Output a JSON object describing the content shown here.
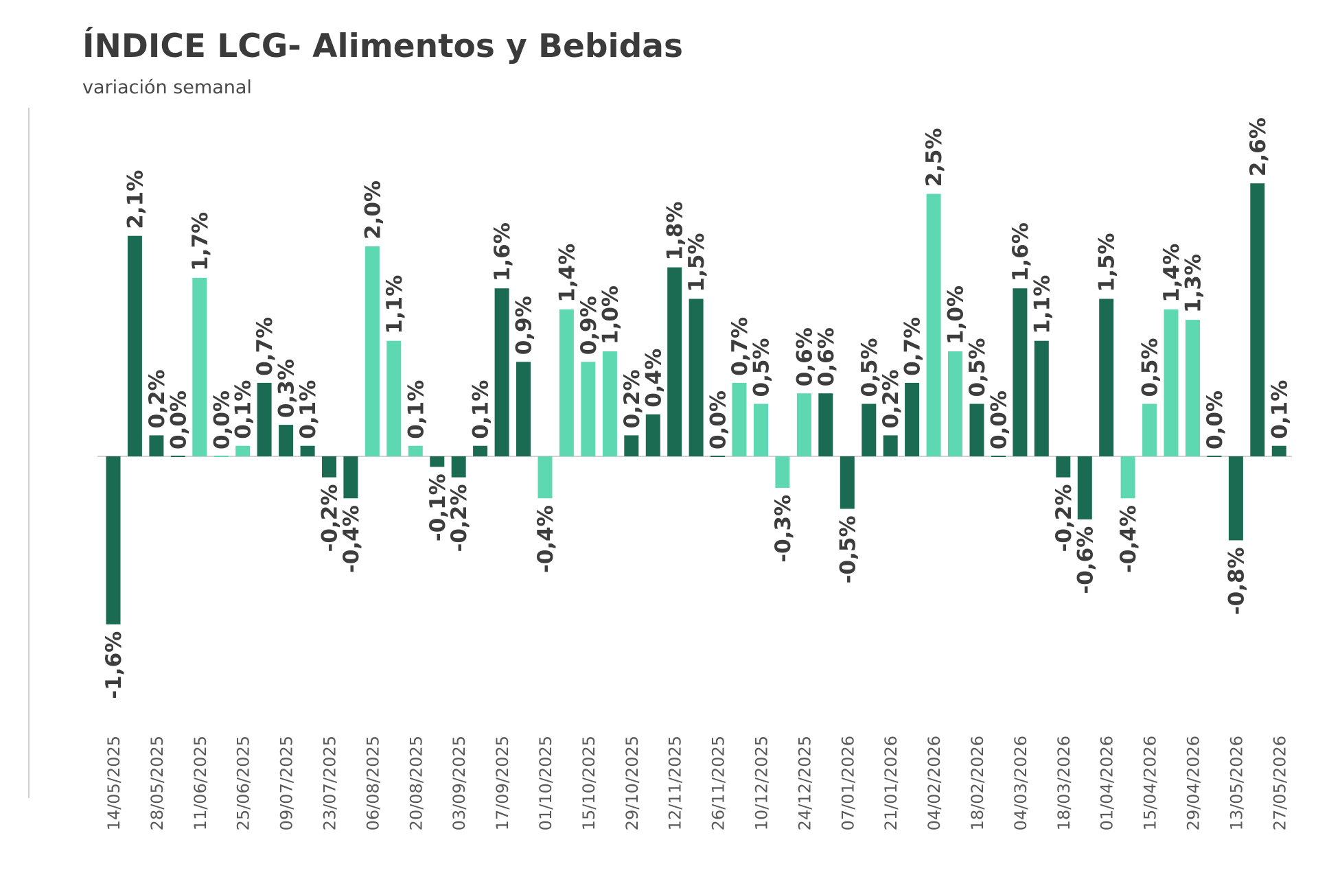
{
  "header": {
    "title": "ÍNDICE LCG- Alimentos y Bebidas",
    "subtitle": "variación semanal"
  },
  "colors": {
    "dark": "#1a6b52",
    "light": "#5dd8b1",
    "axis": "#d0d0d0",
    "text": "#3d3d3d"
  },
  "chart_data": {
    "type": "bar",
    "title": "ÍNDICE LCG- Alimentos y Bebidas",
    "subtitle": "variación semanal",
    "xlabel": "",
    "ylabel": "",
    "ylim": [
      -2.2,
      3.2
    ],
    "grid": false,
    "legend": "none",
    "tick_labels": [
      "14/05/2025",
      "28/05/2025",
      "11/06/2025",
      "25/06/2025",
      "09/07/2025",
      "23/07/2025",
      "06/08/2025",
      "20/08/2025",
      "03/09/2025",
      "17/09/2025",
      "01/10/2025",
      "15/10/2025",
      "29/10/2025",
      "12/11/2025",
      "26/11/2025",
      "10/12/2025",
      "24/12/2025",
      "07/01/2026",
      "21/01/2026",
      "04/02/2026",
      "18/02/2026",
      "04/03/2026",
      "18/03/2026",
      "01/04/2026",
      "15/04/2026",
      "29/04/2026",
      "13/05/2026",
      "27/05/2026"
    ],
    "values": [
      -1.6,
      2.1,
      0.2,
      0.0,
      1.7,
      0.0,
      0.1,
      0.7,
      0.3,
      0.1,
      -0.2,
      -0.4,
      2.0,
      1.1,
      0.1,
      -0.1,
      -0.2,
      0.1,
      1.6,
      0.9,
      -0.4,
      1.4,
      0.9,
      1.0,
      0.2,
      0.4,
      1.8,
      1.5,
      0.0,
      0.7,
      0.5,
      -0.3,
      0.6,
      0.6,
      -0.5,
      0.5,
      0.2,
      0.7,
      2.5,
      1.0,
      0.5,
      0.0,
      1.6,
      1.1,
      -0.2,
      -0.6,
      1.5,
      -0.4,
      0.5,
      1.4,
      1.3,
      0.0,
      -0.8,
      2.6,
      0.1
    ],
    "labels": [
      "-1,6%",
      "2,1%",
      "0,2%",
      "0,0%",
      "1,7%",
      "0,0%",
      "0,1%",
      "0,7%",
      "0,3%",
      "0,1%",
      "-0,2%",
      "-0,4%",
      "2,0%",
      "1,1%",
      "0,1%",
      "-0,1%",
      "-0,2%",
      "0,1%",
      "1,6%",
      "0,9%",
      "-0,4%",
      "1,4%",
      "0,9%",
      "1,0%",
      "0,2%",
      "0,4%",
      "1,8%",
      "1,5%",
      "0,0%",
      "0,7%",
      "0,5%",
      "-0,3%",
      "0,6%",
      "0,6%",
      "-0,5%",
      "0,5%",
      "0,2%",
      "0,7%",
      "2,5%",
      "1,0%",
      "0,5%",
      "0,0%",
      "1,6%",
      "1,1%",
      "-0,2%",
      "-0,6%",
      "1,5%",
      "-0,4%",
      "0,5%",
      "1,4%",
      "1,3%",
      "0,0%",
      "-0,8%",
      "2,6%",
      "0,1%"
    ],
    "shade": [
      "dark",
      "dark",
      "dark",
      "dark",
      "light",
      "light",
      "light",
      "dark",
      "dark",
      "dark",
      "dark",
      "dark",
      "light",
      "light",
      "light",
      "dark",
      "dark",
      "dark",
      "dark",
      "dark",
      "light",
      "light",
      "light",
      "light",
      "dark",
      "dark",
      "dark",
      "dark",
      "dark",
      "light",
      "light",
      "light",
      "light",
      "dark",
      "dark",
      "dark",
      "dark",
      "dark",
      "light",
      "light",
      "dark",
      "dark",
      "dark",
      "dark",
      "dark",
      "dark",
      "dark",
      "light",
      "light",
      "light",
      "light",
      "dark",
      "dark",
      "dark",
      "dark"
    ]
  }
}
